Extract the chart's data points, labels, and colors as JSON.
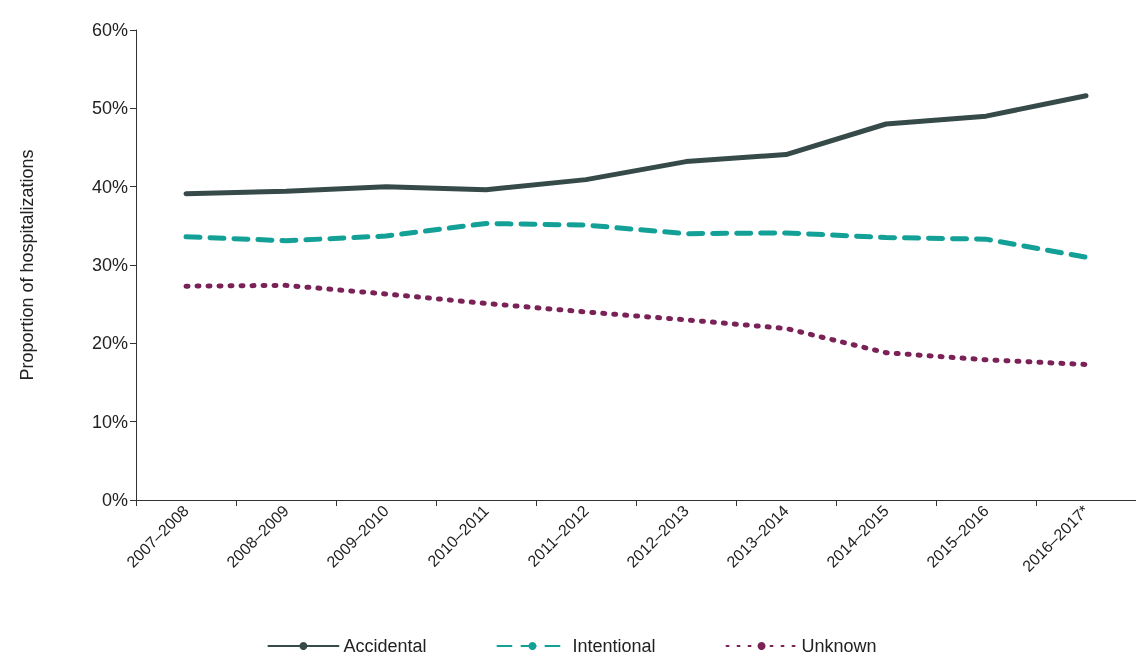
{
  "chart_data": {
    "type": "line",
    "ylabel": "Proportion of hospitalizations",
    "categories": [
      "2007–2008",
      "2008–2009",
      "2009–2010",
      "2010–2011",
      "2011–2012",
      "2012–2013",
      "2013–2014",
      "2014–2015",
      "2015–2016",
      "2016–2017*"
    ],
    "series": [
      {
        "name": "Accidental",
        "color": "#364b49",
        "line_style": "solid",
        "values": [
          39.1,
          39.4,
          40.0,
          39.6,
          40.9,
          43.2,
          44.1,
          48.0,
          49.0,
          51.6
        ]
      },
      {
        "name": "Intentional",
        "color": "#13a096",
        "line_style": "dashed",
        "values": [
          33.6,
          33.1,
          33.7,
          35.3,
          35.1,
          34.0,
          34.1,
          33.5,
          33.3,
          31.0
        ]
      },
      {
        "name": "Unknown",
        "color": "#7a2157",
        "line_style": "dotted",
        "values": [
          27.3,
          27.4,
          26.3,
          25.1,
          24.0,
          23.0,
          21.9,
          18.8,
          17.9,
          17.3
        ]
      }
    ],
    "ylim": [
      0,
      60
    ],
    "yticks": [
      {
        "value": 0,
        "label": "0%"
      },
      {
        "value": 10,
        "label": "10%"
      },
      {
        "value": 20,
        "label": "20%"
      },
      {
        "value": 30,
        "label": "30%"
      },
      {
        "value": 40,
        "label": "40%"
      },
      {
        "value": 50,
        "label": "50%"
      },
      {
        "value": 60,
        "label": "60%"
      }
    ],
    "grid": false,
    "legend": "bottom",
    "marker": "none"
  }
}
